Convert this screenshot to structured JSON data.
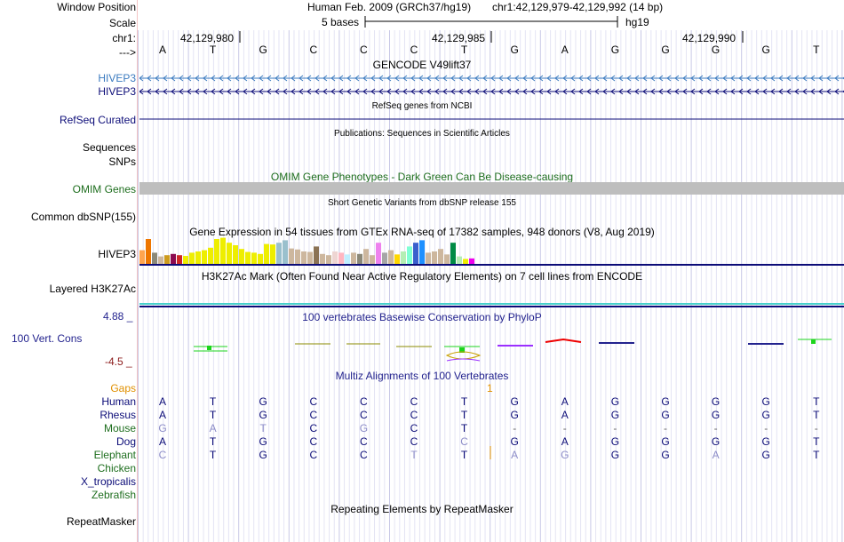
{
  "header": {
    "window_position_label": "Window Position",
    "assembly": "Human Feb. 2009 (GRCh37/hg19)",
    "position": "chr1:42,129,979-42,129,992 (14 bp)",
    "scale_label": "Scale",
    "scale_bases": "5 bases",
    "scale_db": "hg19",
    "chrom_label": "chr1:",
    "coords": [
      "42,129,980",
      "42,129,985",
      "42,129,990"
    ],
    "strand_label": "--->"
  },
  "sequence": [
    "A",
    "T",
    "G",
    "C",
    "C",
    "C",
    "T",
    "G",
    "A",
    "G",
    "G",
    "G",
    "G",
    "T"
  ],
  "tracks": {
    "gencode": {
      "title": "GENCODE V49lift37",
      "items": [
        "HIVEP3",
        "HIVEP3"
      ],
      "color": "#3a7abf"
    },
    "refseq": {
      "label": "RefSeq Curated",
      "title": "RefSeq genes from NCBI"
    },
    "publications": {
      "label": "Sequences",
      "title": "Publications: Sequences in Scientific Articles"
    },
    "snps": {
      "label": "SNPs"
    },
    "omim": {
      "label": "OMIM Genes",
      "title": "OMIM Gene Phenotypes - Dark Green Can Be Disease-causing",
      "color": "#1e6e1e"
    },
    "dbsnp": {
      "label": "Common dbSNP(155)",
      "title": "Short Genetic Variants from dbSNP release 155"
    },
    "gtex": {
      "label": "HIVEP3",
      "title": "Gene Expression in 54 tissues from GTEx RNA-seq of 17382 samples, 948 donors (V8, Aug 2019)",
      "bars": [
        {
          "v": 0.55,
          "c": "#ffa54f"
        },
        {
          "v": 1.0,
          "c": "#ee7600"
        },
        {
          "v": 0.45,
          "c": "#8b8878"
        },
        {
          "v": 0.3,
          "c": "#cdb79e"
        },
        {
          "v": 0.35,
          "c": "#cd9b1d"
        },
        {
          "v": 0.4,
          "c": "#8b0a50"
        },
        {
          "v": 0.35,
          "c": "#cd2626"
        },
        {
          "v": 0.32,
          "c": "#eeee00"
        },
        {
          "v": 0.45,
          "c": "#eeee00"
        },
        {
          "v": 0.5,
          "c": "#eeee00"
        },
        {
          "v": 0.55,
          "c": "#eeee00"
        },
        {
          "v": 0.65,
          "c": "#eeee00"
        },
        {
          "v": 1.0,
          "c": "#eeee00"
        },
        {
          "v": 1.05,
          "c": "#eeee00"
        },
        {
          "v": 0.85,
          "c": "#eeee00"
        },
        {
          "v": 0.75,
          "c": "#eeee00"
        },
        {
          "v": 0.6,
          "c": "#eeee00"
        },
        {
          "v": 0.48,
          "c": "#eeee00"
        },
        {
          "v": 0.45,
          "c": "#eeee00"
        },
        {
          "v": 0.4,
          "c": "#eeee00"
        },
        {
          "v": 0.8,
          "c": "#eeee00"
        },
        {
          "v": 0.78,
          "c": "#eeee00"
        },
        {
          "v": 0.85,
          "c": "#9ac0cd"
        },
        {
          "v": 0.95,
          "c": "#9ac0cd"
        },
        {
          "v": 0.62,
          "c": "#cdb79e"
        },
        {
          "v": 0.58,
          "c": "#cdb79e"
        },
        {
          "v": 0.5,
          "c": "#cdb79e"
        },
        {
          "v": 0.48,
          "c": "#cdb79e"
        },
        {
          "v": 0.7,
          "c": "#8b7355"
        },
        {
          "v": 0.4,
          "c": "#cdb79e"
        },
        {
          "v": 0.35,
          "c": "#cdb79e"
        },
        {
          "v": 0.5,
          "c": "#eed5d2"
        },
        {
          "v": 0.45,
          "c": "#ffb6c1"
        },
        {
          "v": 0.38,
          "c": "#bfefff"
        },
        {
          "v": 0.45,
          "c": "#cdb79e"
        },
        {
          "v": 0.4,
          "c": "#8b8878"
        },
        {
          "v": 0.6,
          "c": "#cdb79e"
        },
        {
          "v": 0.35,
          "c": "#cdb79e"
        },
        {
          "v": 0.85,
          "c": "#ee82ee"
        },
        {
          "v": 0.45,
          "c": "#a6a6a6"
        },
        {
          "v": 0.55,
          "c": "#cdb79e"
        },
        {
          "v": 0.38,
          "c": "#ffd700"
        },
        {
          "v": 0.5,
          "c": "#b4eeb4"
        },
        {
          "v": 0.7,
          "c": "#7fffd4"
        },
        {
          "v": 0.85,
          "c": "#3a5fcd"
        },
        {
          "v": 0.95,
          "c": "#1e90ff"
        },
        {
          "v": 0.45,
          "c": "#cdb79e"
        },
        {
          "v": 0.5,
          "c": "#cdb79e"
        },
        {
          "v": 0.6,
          "c": "#cdb79e"
        },
        {
          "v": 0.38,
          "c": "#cdb79e"
        },
        {
          "v": 0.85,
          "c": "#008b45"
        },
        {
          "v": 0.3,
          "c": "#b4eeb4"
        },
        {
          "v": 0.2,
          "c": "#eeee00"
        },
        {
          "v": 0.22,
          "c": "#ee00ee"
        }
      ]
    },
    "h3k27ac": {
      "label": "Layered H3K27Ac",
      "title": "H3K27Ac Mark (Often Found Near Active Regulatory Elements) on 7 cell lines from ENCODE"
    },
    "cons": {
      "label": "100 Vert. Cons",
      "max_label": "4.88 _",
      "min_label": "-4.5 _",
      "title": "100 vertebrates Basewise Conservation by PhyloP",
      "color": "#23238e"
    },
    "multiz": {
      "title": "Multiz Alignments of 100 Vertebrates",
      "gaps_label": "Gaps",
      "gaps_marker": "1",
      "species": [
        {
          "name": "Human",
          "bases": [
            "A",
            "T",
            "G",
            "C",
            "C",
            "C",
            "T",
            "G",
            "A",
            "G",
            "G",
            "G",
            "G",
            "T"
          ],
          "color": "#0c0c78"
        },
        {
          "name": "Rhesus",
          "bases": [
            "A",
            "T",
            "G",
            "C",
            "C",
            "C",
            "T",
            "G",
            "A",
            "G",
            "G",
            "G",
            "G",
            "T"
          ],
          "color": "#0c0c78"
        },
        {
          "name": "Mouse",
          "bases": [
            "G",
            "A",
            "T",
            "C",
            "G",
            "C",
            "T",
            "-",
            "-",
            "-",
            "-",
            "-",
            "-",
            "-"
          ],
          "color": "#1e6e1e"
        },
        {
          "name": "Dog",
          "bases": [
            "A",
            "T",
            "G",
            "C",
            "C",
            "C",
            "C",
            "G",
            "A",
            "G",
            "G",
            "G",
            "G",
            "T"
          ],
          "color": "#0c0c78"
        },
        {
          "name": "Elephant",
          "bases": [
            "C",
            "T",
            "G",
            "C",
            "C",
            "T",
            "T",
            "A",
            "G",
            "G",
            "G",
            "A",
            "G",
            "T"
          ],
          "color": "#1e6e1e"
        },
        {
          "name": "Chicken",
          "bases": [],
          "color": "#1e6e1e"
        },
        {
          "name": "X_tropicalis",
          "bases": [],
          "color": "#0c0c78"
        },
        {
          "name": "Zebrafish",
          "bases": [],
          "color": "#1e6e1e"
        }
      ]
    },
    "repeatmasker": {
      "label": "RepeatMasker",
      "title": "Repeating Elements by RepeatMasker"
    }
  }
}
